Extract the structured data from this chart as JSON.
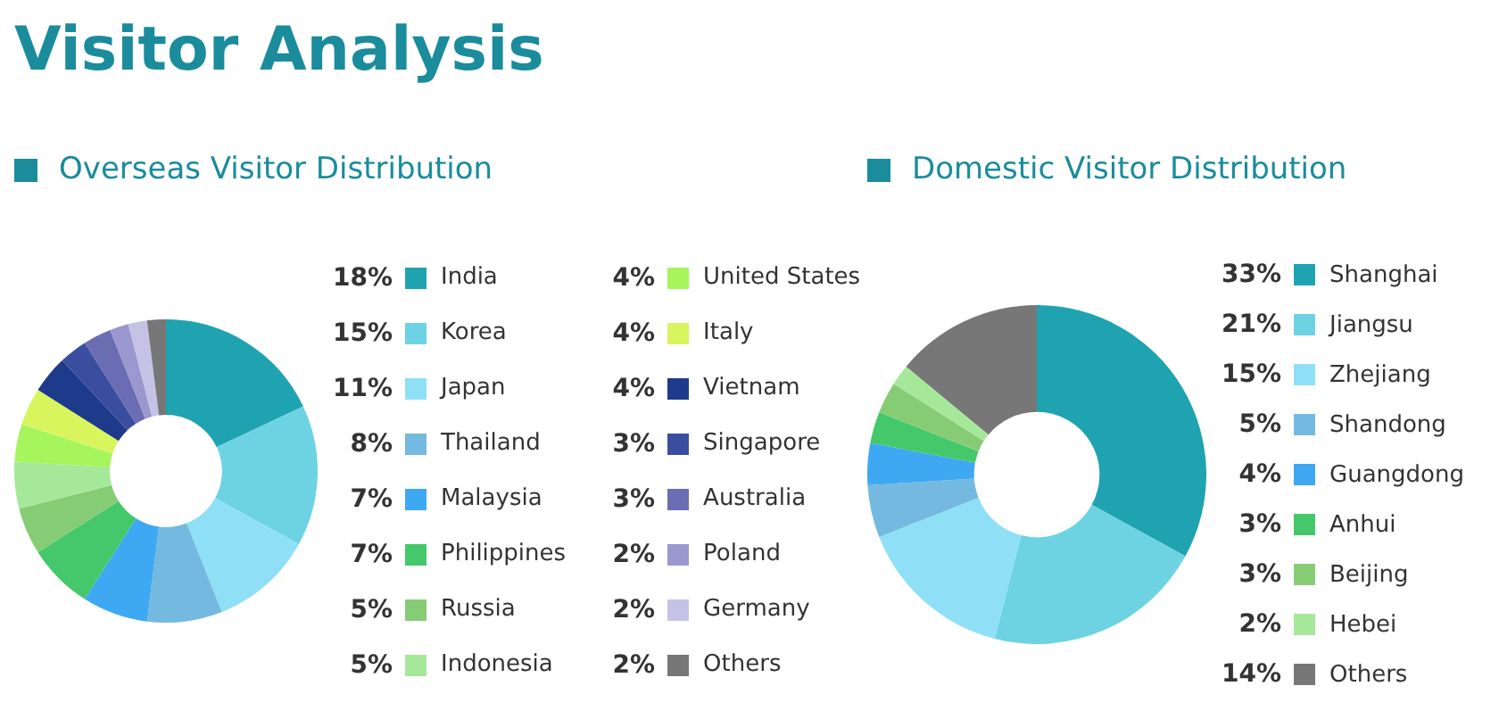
{
  "chart_data": [
    {
      "type": "other",
      "title": "Visitor Analysis"
    },
    {
      "type": "donut",
      "title": "Overseas Visitor Distribution",
      "categories": [
        "India",
        "Korea",
        "Japan",
        "Thailand",
        "Malaysia",
        "Philippines",
        "Russia",
        "Indonesia",
        "United States",
        "Italy",
        "Vietnam",
        "Singapore",
        "Australia",
        "Poland",
        "Germany",
        "Others"
      ],
      "values": [
        18,
        15,
        11,
        8,
        7,
        7,
        5,
        5,
        4,
        4,
        4,
        3,
        3,
        2,
        2,
        2
      ],
      "value_labels": [
        "18%",
        "15%",
        "11%",
        "8%",
        "7%",
        "7%",
        "5%",
        "5%",
        "4%",
        "4%",
        "4%",
        "3%",
        "3%",
        "2%",
        "2%",
        "2%"
      ],
      "colors": [
        "#1fa3b0",
        "#6dd3e3",
        "#8fdff7",
        "#74b9df",
        "#3fa8f2",
        "#44c86b",
        "#86cc75",
        "#a6e89a",
        "#a6f55c",
        "#d9f55e",
        "#1e3a8a",
        "#3a4d9e",
        "#6b6db3",
        "#9b97cf",
        "#c5c2e6",
        "#777777"
      ],
      "legend": "right"
    },
    {
      "type": "donut",
      "title": "Domestic Visitor Distribution",
      "categories": [
        "Shanghai",
        "Jiangsu",
        "Zhejiang",
        "Shandong",
        "Guangdong",
        "Anhui",
        "Beijing",
        "Hebei",
        "Others"
      ],
      "values": [
        33,
        21,
        15,
        5,
        4,
        3,
        3,
        2,
        14
      ],
      "value_labels": [
        "33%",
        "21%",
        "15%",
        "5%",
        "4%",
        "3%",
        "3%",
        "2%",
        "14%"
      ],
      "colors": [
        "#1fa3b0",
        "#6dd3e3",
        "#8fdff7",
        "#74b9df",
        "#3fa8f2",
        "#44c86b",
        "#86cc75",
        "#a6e89a",
        "#777777"
      ],
      "legend": "right"
    }
  ]
}
